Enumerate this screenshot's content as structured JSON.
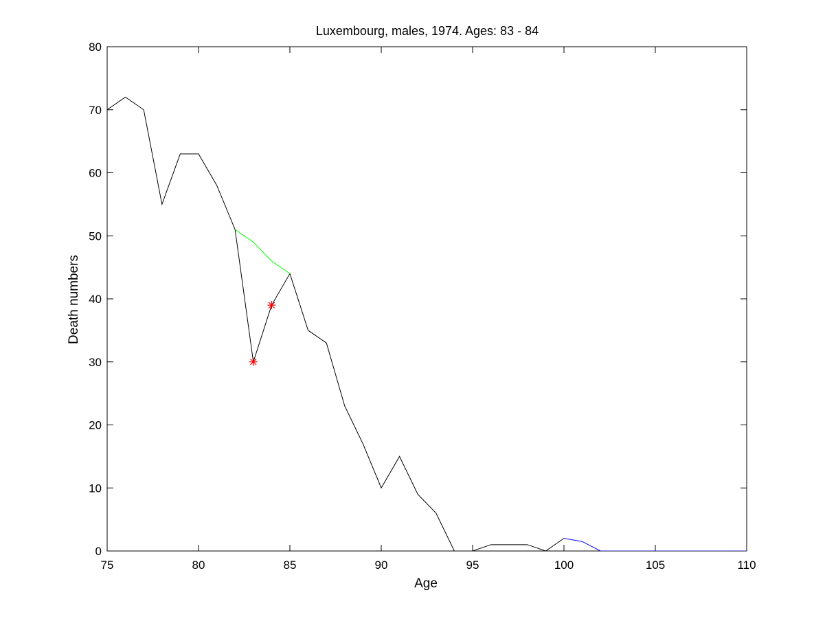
{
  "chart_data": {
    "type": "line",
    "title": "Luxembourg, males, 1974. Ages: 83 - 84",
    "xlabel": "Age",
    "ylabel": "Death numbers",
    "xlim": [
      75,
      110
    ],
    "ylim": [
      0,
      80
    ],
    "xticks": [
      75,
      80,
      85,
      90,
      95,
      100,
      105,
      110
    ],
    "yticks": [
      0,
      10,
      20,
      30,
      40,
      50,
      60,
      70,
      80
    ],
    "grid": false,
    "series": [
      {
        "color": "#000000",
        "x": [
          75,
          76,
          77,
          78,
          79,
          80,
          81,
          82,
          83,
          84,
          85,
          86,
          87,
          88,
          89,
          90,
          91,
          92,
          93,
          94,
          95,
          96,
          97,
          98,
          99,
          100
        ],
        "y": [
          70,
          72,
          70,
          55,
          63,
          63,
          58,
          51,
          30,
          39,
          44,
          35,
          33,
          23,
          17,
          10,
          15,
          9,
          6,
          0,
          0,
          1,
          1,
          1,
          0,
          2
        ]
      },
      {
        "color": "#00ff00",
        "x": [
          82,
          83,
          84,
          85
        ],
        "y": [
          51,
          49,
          46,
          44
        ]
      },
      {
        "color": "#0000ff",
        "x": [
          100,
          101,
          102,
          110
        ],
        "y": [
          2,
          1.5,
          0,
          0
        ]
      }
    ],
    "markers": {
      "color": "#ff0000",
      "symbol": "asterisk",
      "x": [
        83,
        84
      ],
      "y": [
        30,
        39
      ]
    }
  }
}
